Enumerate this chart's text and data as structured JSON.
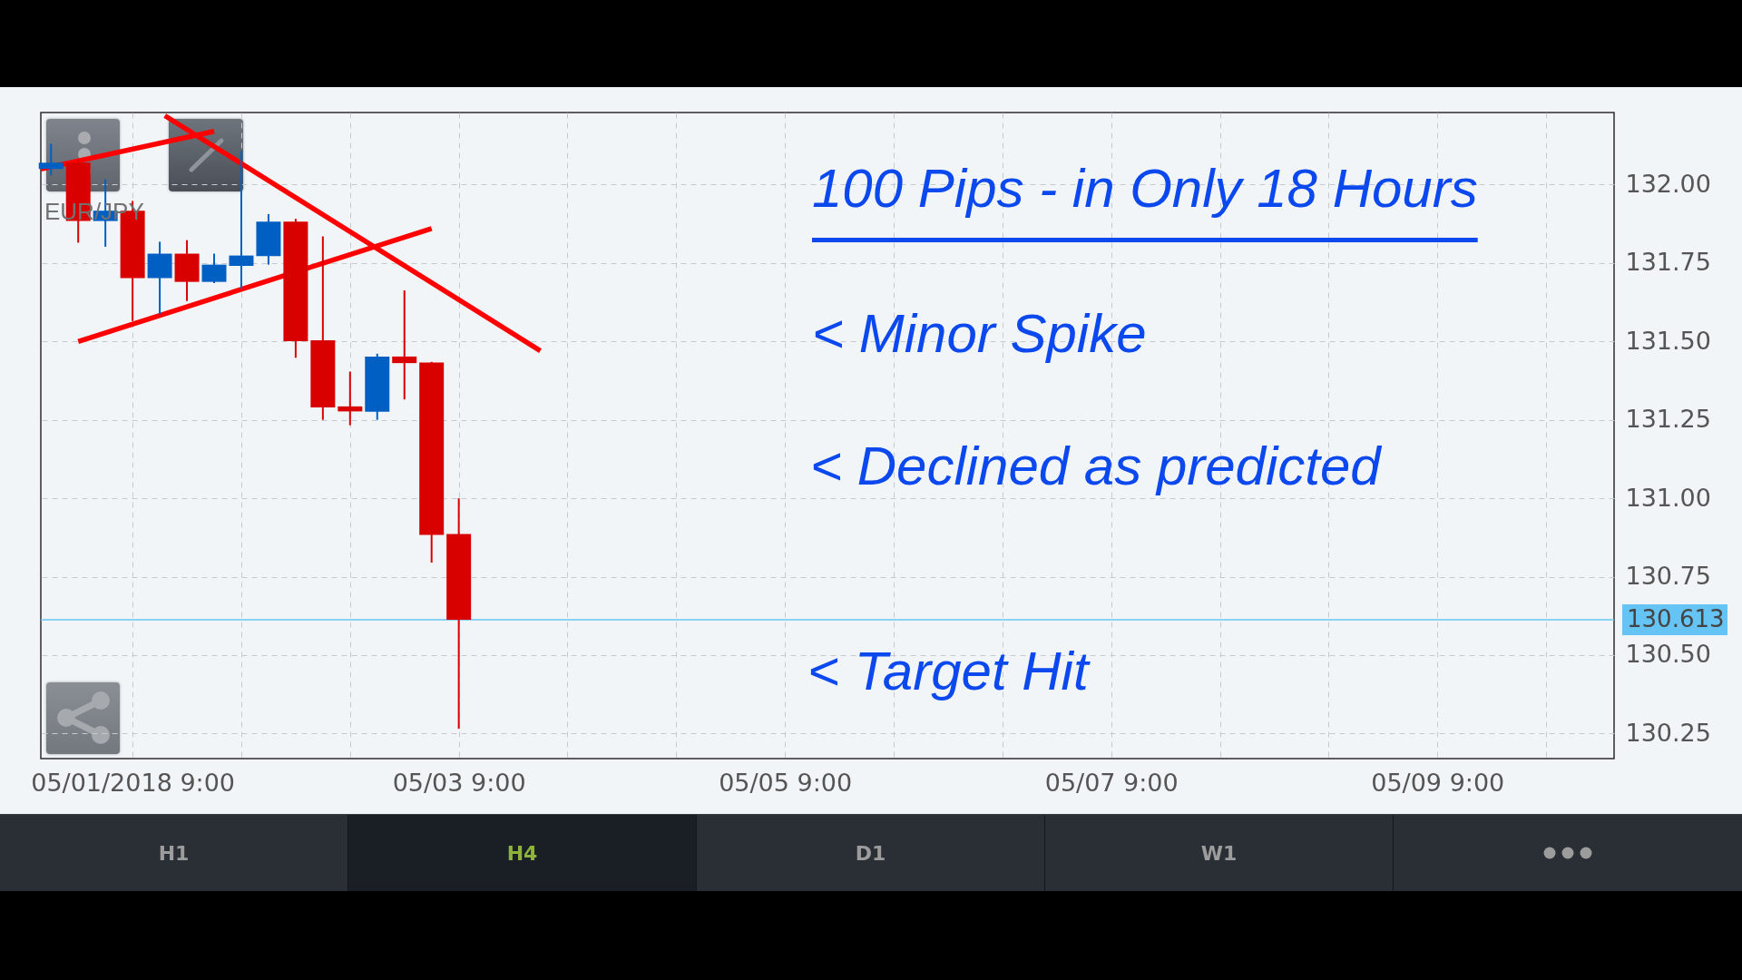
{
  "chart_data": {
    "type": "candlestick",
    "title": "EUR/JPY",
    "annotations": [
      "100 Pips - in Only 18 Hours",
      "< Minor Spike",
      "< Declined as predicted",
      "< Target Hit",
      "H1",
      "H4",
      "D1",
      "W1"
    ],
    "x": [
      "2018-04-30T21:00",
      "2018-05-01T01:00",
      "2018-05-01T05:00",
      "2018-05-01T09:00",
      "2018-05-01T13:00",
      "2018-05-01T17:00",
      "2018-05-01T21:00",
      "2018-05-02T01:00",
      "2018-05-02T05:00",
      "2018-05-02T09:00",
      "2018-05-02T13:00",
      "2018-05-02T17:00",
      "2018-05-02T21:00",
      "2018-05-03T01:00",
      "2018-05-03T05:00",
      "2018-05-03T09:00"
    ],
    "ohlc": [
      [
        132.05,
        132.13,
        132.03,
        132.07
      ],
      [
        132.07,
        132.08,
        131.815,
        131.884
      ],
      [
        131.884,
        132.017,
        131.802,
        131.917
      ],
      [
        131.917,
        131.948,
        131.565,
        131.702
      ],
      [
        131.702,
        131.818,
        131.587,
        131.78
      ],
      [
        131.78,
        131.823,
        131.629,
        131.69
      ],
      [
        131.69,
        131.78,
        131.686,
        131.745
      ],
      [
        131.741,
        132.107,
        131.668,
        131.774
      ],
      [
        131.772,
        131.906,
        131.745,
        131.882
      ],
      [
        131.882,
        131.891,
        131.448,
        131.501
      ],
      [
        131.504,
        131.835,
        131.25,
        131.29
      ],
      [
        131.293,
        131.404,
        131.233,
        131.277
      ],
      [
        131.276,
        131.461,
        131.25,
        131.452
      ],
      [
        131.452,
        131.663,
        131.315,
        131.431
      ],
      [
        131.433,
        131.435,
        130.795,
        130.883
      ],
      [
        130.886,
        131.0,
        130.265,
        130.613
      ]
    ],
    "colors": [
      "#005fc2",
      "#d90000",
      "#005fc2",
      "#d90000",
      "#005fc2",
      "#d90000",
      "#005fc2",
      "#005fc2",
      "#005fc2",
      "#d90000",
      "#d90000",
      "#d90000",
      "#005fc2",
      "#d90000",
      "#d90000",
      "#d90000"
    ],
    "series": [
      {
        "type": "line",
        "x": [
          "2018-04-30T19:30",
          "2018-05-01T21:00"
        ],
        "values": [
          132.05,
          132.17
        ],
        "color": "#ff0000"
      },
      {
        "type": "line",
        "x": [
          "2018-05-01T13:45",
          "2018-05-03T21:00"
        ],
        "values": [
          132.22,
          131.47
        ],
        "color": "#ff0000"
      },
      {
        "type": "line",
        "x": [
          "2018-05-01T01:00",
          "2018-05-03T05:00"
        ],
        "values": [
          131.5,
          131.86
        ],
        "color": "#ff0000"
      }
    ],
    "xlim": [
      "2018-04-30T19:30",
      "2018-05-10T11:00"
    ],
    "ylim": [
      130.17,
      132.23
    ],
    "xticks": [
      {
        "value": "2018-05-01T09:00",
        "label": "05/01/2018 9:00"
      },
      {
        "value": "2018-05-02T01:00",
        "label": null
      },
      {
        "value": "2018-05-02T17:00",
        "label": null
      },
      {
        "value": "2018-05-03T09:00",
        "label": "05/03 9:00"
      },
      {
        "value": "2018-05-04T01:00",
        "label": null
      },
      {
        "value": "2018-05-04T17:00",
        "label": null
      },
      {
        "value": "2018-05-05T09:00",
        "label": "05/05 9:00"
      },
      {
        "value": "2018-05-06T01:00",
        "label": null
      },
      {
        "value": "2018-05-06T17:00",
        "label": null
      },
      {
        "value": "2018-05-07T09:00",
        "label": "05/07 9:00"
      },
      {
        "value": "2018-05-08T01:00",
        "label": null
      },
      {
        "value": "2018-05-08T17:00",
        "label": null
      },
      {
        "value": "2018-05-09T09:00",
        "label": "05/09 9:00"
      },
      {
        "value": "2018-05-10T01:00",
        "label": null
      }
    ],
    "yticks": [
      130.25,
      {
        "value": 130.5,
        "label": "130.50"
      },
      130.75,
      {
        "value": 131,
        "label": "131.00"
      },
      131.25,
      {
        "value": 131.5,
        "label": "131.50"
      },
      131.75,
      {
        "value": 132,
        "label": "132.00"
      }
    ],
    "grid": true,
    "ref_lines": [
      {
        "axis": "y",
        "value": 130.613,
        "label": "130.613",
        "color": "#66c4f4"
      }
    ]
  }
}
